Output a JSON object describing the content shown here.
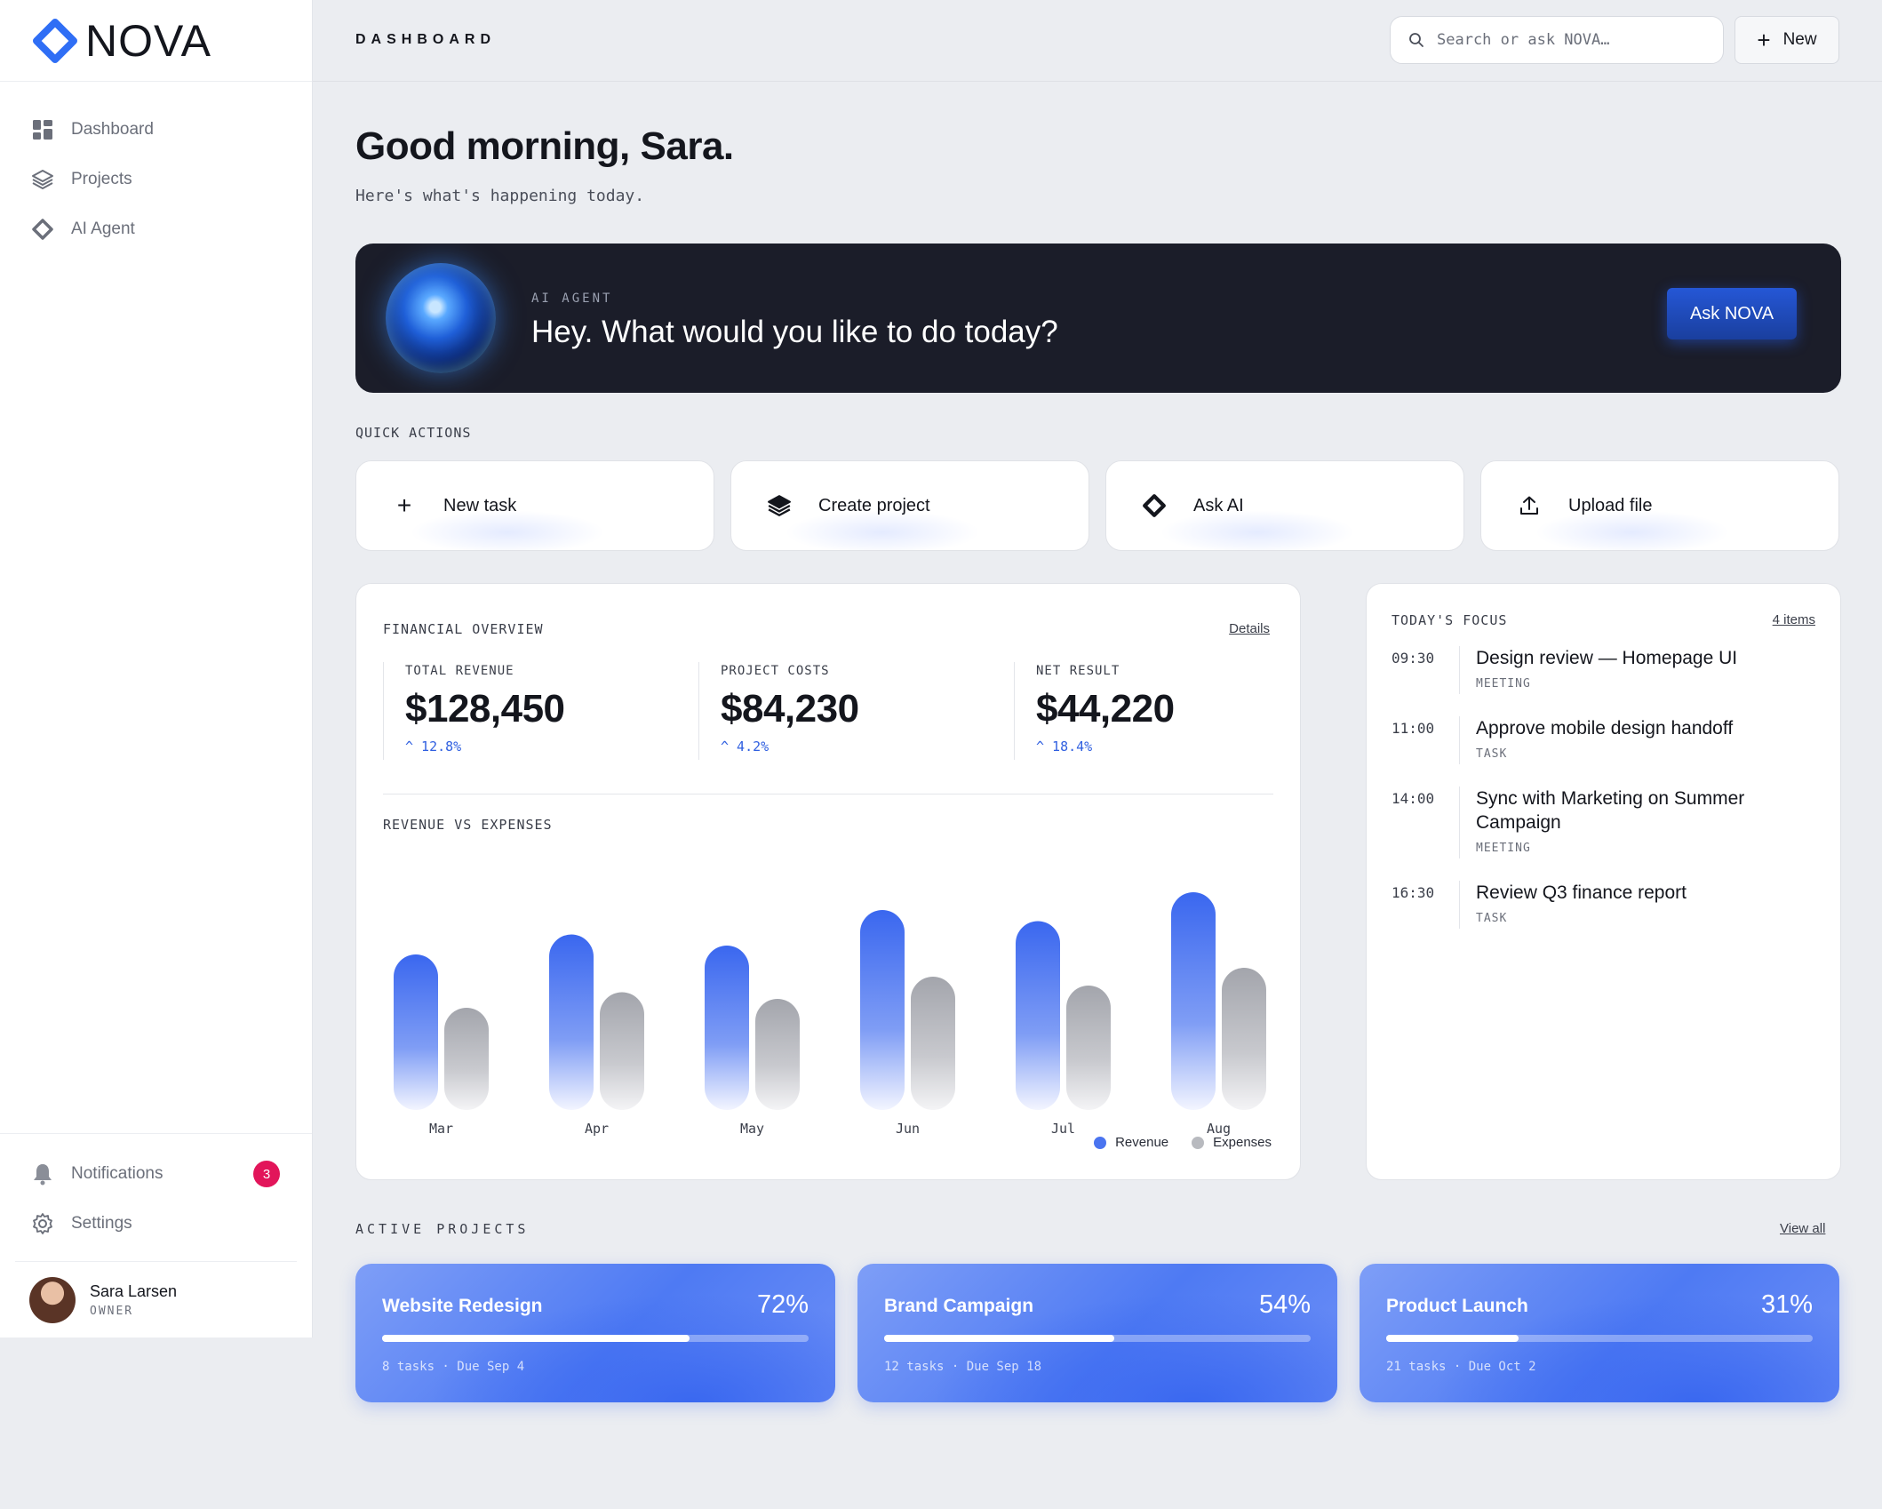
{
  "app": {
    "name": "NOVA"
  },
  "sidebar": {
    "items": [
      {
        "label": "Dashboard",
        "icon": "grid-icon"
      },
      {
        "label": "Projects",
        "icon": "layers-icon"
      },
      {
        "label": "AI Agent",
        "icon": "diamond-icon"
      }
    ],
    "bottom": [
      {
        "label": "Notifications",
        "icon": "bell-icon",
        "badge": "3"
      },
      {
        "label": "Settings",
        "icon": "gear-icon"
      }
    ],
    "user": {
      "name": "Sara Larsen",
      "role": "OWNER"
    }
  },
  "header": {
    "title": "DASHBOARD",
    "search_placeholder": "Search or ask NOVA…",
    "new_label": "New"
  },
  "greeting": {
    "title": "Good morning, Sara.",
    "subtitle": "Here's what's happening today."
  },
  "hero": {
    "label": "AI AGENT",
    "prompt": "Hey. What would you like to do today?",
    "button": "Ask NOVA"
  },
  "quick_actions": {
    "label": "QUICK ACTIONS",
    "items": [
      {
        "label": "New task",
        "icon": "plus-icon"
      },
      {
        "label": "Create project",
        "icon": "layers-icon"
      },
      {
        "label": "Ask AI",
        "icon": "diamond-icon"
      },
      {
        "label": "Upload file",
        "icon": "upload-icon"
      }
    ]
  },
  "financial": {
    "label": "FINANCIAL OVERVIEW",
    "details_link": "Details",
    "stats": [
      {
        "label": "TOTAL REVENUE",
        "value": "$128,450",
        "delta": "^ 12.8%"
      },
      {
        "label": "PROJECT COSTS",
        "value": "$84,230",
        "delta": "^ 4.2%"
      },
      {
        "label": "NET RESULT",
        "value": "$44,220",
        "delta": "^ 18.4%"
      }
    ],
    "chart_label": "REVENUE VS EXPENSES"
  },
  "chart_data": {
    "type": "bar",
    "title": "REVENUE VS EXPENSES",
    "categories": [
      "Mar",
      "Apr",
      "May",
      "Jun",
      "Jul",
      "Aug"
    ],
    "series": [
      {
        "name": "Revenue",
        "values": [
          70,
          79,
          74,
          90,
          85,
          98
        ],
        "color": "#3f6df0"
      },
      {
        "name": "Expenses",
        "values": [
          46,
          53,
          50,
          60,
          56,
          64
        ],
        "color": "#a4a6ad"
      }
    ],
    "ylim": [
      0,
      100
    ],
    "grid": false,
    "legend": "bottom-right"
  },
  "focus": {
    "label": "TODAY'S FOCUS",
    "count_link": "4 items",
    "items": [
      {
        "time": "09:30",
        "title": "Design review — Homepage UI",
        "type": "MEETING"
      },
      {
        "time": "11:00",
        "title": "Approve mobile design handoff",
        "type": "TASK"
      },
      {
        "time": "14:00",
        "title": "Sync with Marketing on Summer Campaign",
        "type": "MEETING"
      },
      {
        "time": "16:30",
        "title": "Review Q3 finance report",
        "type": "TASK"
      }
    ]
  },
  "projects": {
    "label": "ACTIVE PROJECTS",
    "view_all": "View all",
    "items": [
      {
        "name": "Website Redesign",
        "percent": "72%",
        "progress": 72,
        "meta": "8 tasks · Due Sep 4"
      },
      {
        "name": "Brand Campaign",
        "percent": "54%",
        "progress": 54,
        "meta": "12 tasks · Due Sep 18"
      },
      {
        "name": "Product Launch",
        "percent": "31%",
        "progress": 31,
        "meta": "21 tasks · Due Oct 2"
      }
    ]
  }
}
